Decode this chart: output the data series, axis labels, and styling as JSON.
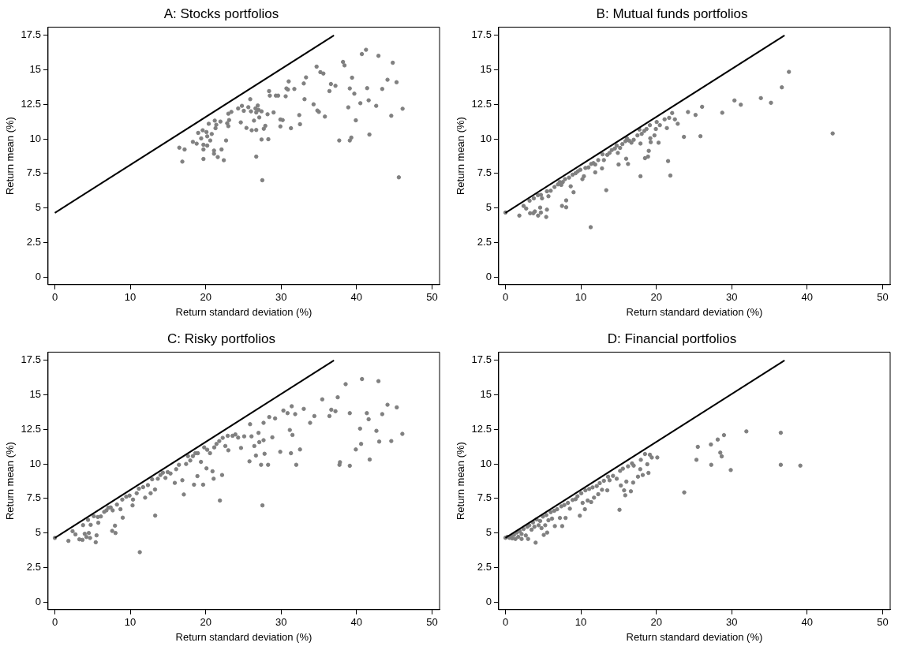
{
  "chart_data": [
    {
      "type": "scatter",
      "title": "A: Stocks portfolios",
      "xlabel": "Return standard deviation (%)",
      "ylabel": "Return mean (%)",
      "xlim": [
        -0.9,
        51
      ],
      "ylim": [
        -0.55,
        18.1
      ],
      "xticks": [
        0,
        10,
        20,
        30,
        40,
        50
      ],
      "yticks": [
        0,
        2.5,
        5,
        7.5,
        10,
        12.5,
        15,
        17.5
      ],
      "grid": false,
      "legend": false,
      "marker": "circle",
      "series": [
        {
          "type": "line",
          "color": "#000000",
          "marker": "none",
          "x": [
            0,
            37
          ],
          "values": [
            4.65,
            17.5
          ]
        },
        {
          "type": "scatter",
          "color": "#808080",
          "x": [
            16.5,
            16.9,
            17.2,
            18.3,
            18.8,
            19.0,
            19.4,
            19.6,
            19.7,
            19.7,
            19.7,
            20.1,
            20.2,
            20.2,
            20.4,
            20.6,
            20.8,
            21.1,
            21.1,
            21.2,
            21.3,
            21.4,
            21.6,
            21.95,
            22.1,
            22.4,
            22.7,
            22.85,
            23.0,
            23.0,
            23.1,
            23.4,
            24.3,
            24.65,
            24.8,
            25.05,
            25.4,
            25.65,
            25.9,
            26.0,
            26.1,
            26.4,
            26.6,
            26.7,
            26.7,
            26.7,
            26.9,
            27.0,
            27.1,
            27.4,
            27.4,
            27.5,
            27.7,
            27.9,
            28.2,
            28.3,
            28.4,
            28.5,
            29.0,
            29.3,
            29.6,
            29.9,
            29.9,
            30.2,
            30.6,
            30.7,
            30.9,
            31.0,
            31.3,
            31.75,
            32.4,
            32.5,
            33.0,
            33.1,
            33.3,
            34.3,
            34.7,
            34.8,
            35.0,
            35.2,
            35.6,
            35.8,
            36.4,
            36.6,
            37.2,
            37.7,
            38.2,
            38.4,
            38.9,
            39.1,
            39.1,
            39.3,
            39.4,
            39.7,
            39.9,
            40.5,
            40.7,
            41.25,
            41.4,
            41.6,
            41.7,
            42.6,
            42.9,
            43.4,
            44.1,
            44.6,
            44.8,
            45.3,
            45.6,
            46.1
          ],
          "values": [
            9.37,
            8.36,
            9.24,
            9.79,
            9.66,
            10.44,
            10.04,
            10.63,
            9.58,
            9.24,
            8.55,
            10.5,
            9.52,
            10.19,
            11.1,
            9.89,
            10.36,
            9.16,
            8.93,
            11.33,
            10.78,
            11.03,
            8.69,
            11.26,
            9.24,
            8.46,
            9.89,
            11.14,
            11.83,
            10.93,
            11.37,
            11.96,
            12.21,
            11.2,
            12.4,
            12.04,
            10.8,
            12.3,
            12.88,
            12.0,
            10.63,
            11.33,
            12.21,
            11.92,
            10.65,
            8.72,
            12.42,
            12.11,
            11.56,
            12.0,
            9.96,
            7.01,
            10.74,
            10.95,
            11.79,
            9.98,
            13.47,
            13.14,
            11.92,
            13.14,
            13.14,
            11.41,
            10.91,
            11.37,
            13.09,
            13.66,
            13.58,
            14.17,
            10.78,
            13.62,
            11.73,
            11.07,
            14.02,
            12.88,
            14.46,
            12.51,
            15.24,
            12.06,
            11.96,
            14.84,
            14.74,
            11.62,
            13.47,
            13.98,
            13.85,
            9.89,
            15.58,
            15.33,
            12.29,
            13.66,
            9.89,
            10.1,
            14.44,
            13.28,
            11.35,
            12.59,
            16.15,
            16.46,
            13.68,
            12.8,
            10.32,
            12.4,
            16.02,
            13.62,
            14.29,
            11.68,
            15.52,
            14.11,
            7.22,
            12.19
          ]
        }
      ]
    },
    {
      "type": "scatter",
      "title": "B: Mutual funds portfolios",
      "xlabel": "Return standard deviation (%)",
      "ylabel": "Return mean (%)",
      "xlim": [
        -0.9,
        51
      ],
      "ylim": [
        -0.55,
        18.1
      ],
      "xticks": [
        0,
        10,
        20,
        30,
        40,
        50
      ],
      "yticks": [
        0,
        2.5,
        5,
        7.5,
        10,
        12.5,
        15,
        17.5
      ],
      "grid": false,
      "legend": false,
      "marker": "circle",
      "series": [
        {
          "type": "line",
          "color": "#000000",
          "marker": "none",
          "x": [
            0,
            37
          ],
          "values": [
            4.65,
            17.5
          ]
        },
        {
          "type": "scatter",
          "color": "#808080",
          "x": [
            0,
            1.84,
            2.4,
            2.75,
            3.2,
            3.27,
            3.7,
            3.76,
            3.9,
            4.3,
            4.33,
            4.6,
            4.7,
            4.7,
            4.85,
            5.4,
            5.5,
            5.5,
            5.7,
            6.0,
            6.5,
            6.96,
            7.2,
            7.4,
            7.5,
            7.6,
            7.9,
            8.05,
            8.05,
            8.43,
            8.65,
            8.9,
            9.03,
            9.3,
            9.6,
            9.93,
            10.2,
            10.4,
            10.6,
            11.0,
            11.3,
            11.36,
            11.66,
            11.9,
            11.9,
            12.3,
            12.8,
            12.87,
            13.05,
            13.36,
            13.5,
            13.8,
            14.1,
            14.5,
            14.75,
            14.9,
            15.0,
            15.2,
            15.5,
            15.9,
            16.0,
            16.1,
            16.25,
            16.4,
            16.7,
            17.0,
            17.5,
            17.76,
            17.9,
            17.9,
            18.06,
            18.4,
            18.5,
            18.7,
            18.9,
            19.0,
            19.15,
            19.2,
            19.26,
            19.75,
            19.94,
            20.05,
            20.3,
            20.47,
            21.1,
            21.4,
            21.56,
            21.7,
            21.86,
            22.1,
            22.46,
            22.84,
            23.66,
            24.2,
            25.2,
            25.85,
            26.07,
            28.74,
            30.36,
            31.2,
            33.86,
            35.2,
            36.64,
            37.58,
            43.38
          ],
          "values": [
            4.67,
            4.45,
            5.15,
            4.96,
            5.53,
            4.62,
            4.62,
            5.7,
            4.75,
            5.93,
            4.45,
            5.03,
            5.95,
            4.67,
            5.7,
            4.35,
            4.88,
            6.21,
            5.85,
            6.25,
            6.52,
            6.71,
            6.88,
            6.67,
            5.15,
            6.88,
            7.09,
            5.55,
            5.05,
            7.2,
            6.57,
            7.41,
            6.14,
            7.52,
            7.66,
            7.77,
            7.09,
            7.3,
            7.9,
            7.94,
            3.61,
            8.19,
            8.25,
            8.15,
            7.58,
            8.47,
            7.87,
            8.89,
            8.47,
            6.29,
            8.85,
            8.99,
            9.2,
            9.31,
            9.52,
            8.99,
            8.15,
            9.35,
            9.63,
            9.84,
            8.57,
            10.05,
            8.19,
            9.88,
            9.73,
            9.94,
            10.26,
            10.68,
            9.67,
            7.3,
            10.37,
            10.58,
            8.61,
            10.72,
            8.72,
            9.14,
            11.0,
            10.05,
            9.77,
            10.26,
            10.72,
            11.23,
            9.73,
            11.0,
            11.42,
            10.79,
            8.4,
            11.53,
            7.35,
            11.88,
            11.42,
            11.1,
            10.15,
            11.95,
            11.74,
            10.2,
            12.33,
            11.9,
            12.79,
            12.48,
            12.96,
            12.62,
            13.74,
            14.86,
            10.4
          ]
        }
      ]
    },
    {
      "type": "scatter",
      "title": "C: Risky portfolios",
      "xlabel": "Return standard deviation (%)",
      "ylabel": "Return mean (%)",
      "xlim": [
        -0.9,
        51
      ],
      "ylim": [
        -0.55,
        18.1
      ],
      "xticks": [
        0,
        10,
        20,
        30,
        40,
        50
      ],
      "yticks": [
        0,
        2.5,
        5,
        7.5,
        10,
        12.5,
        15,
        17.5
      ],
      "grid": false,
      "legend": false,
      "marker": "circle",
      "series": [
        {
          "type": "line",
          "color": "#000000",
          "marker": "none",
          "x": [
            0,
            37
          ],
          "values": [
            4.65,
            17.5
          ]
        },
        {
          "type": "scatter",
          "color": "#808080",
          "x": [
            0,
            1.8,
            2.35,
            2.73,
            3.25,
            3.66,
            3.74,
            3.96,
            4.19,
            4.4,
            4.5,
            4.67,
            4.75,
            5.16,
            5.42,
            5.53,
            5.7,
            5.76,
            6.1,
            6.54,
            6.84,
            7.1,
            7.4,
            7.6,
            7.67,
            7.97,
            8.04,
            8.23,
            8.7,
            8.94,
            9.0,
            9.46,
            9.9,
            10.3,
            10.36,
            10.85,
            11.14,
            11.26,
            11.7,
            11.97,
            12.34,
            12.7,
            12.9,
            13.28,
            13.3,
            13.65,
            14.0,
            14.32,
            14.66,
            14.96,
            15.33,
            15.9,
            16.08,
            16.45,
            16.9,
            17.1,
            17.4,
            17.65,
            17.95,
            18.3,
            18.45,
            18.63,
            18.9,
            18.96,
            19.37,
            19.66,
            19.8,
            20.1,
            20.2,
            20.57,
            20.9,
            21.05,
            21.13,
            21.43,
            21.8,
            21.88,
            22.17,
            22.25,
            22.6,
            22.92,
            23.0,
            23.56,
            23.93,
            24.3,
            24.68,
            25.1,
            25.8,
            25.88,
            26.07,
            26.44,
            26.66,
            27.0,
            27.1,
            27.34,
            27.52,
            27.67,
            27.8,
            27.67,
            28.42,
            28.27,
            28.83,
            29.2,
            29.88,
            30.3,
            30.85,
            31.15,
            31.4,
            31.3,
            31.5,
            31.86,
            32.0,
            32.5,
            33.0,
            33.84,
            34.4,
            35.45,
            36.4,
            36.65,
            37.2,
            37.5,
            37.73,
            37.8,
            38.55,
            39.1,
            39.1,
            39.9,
            40.46,
            40.6,
            40.72,
            41.36,
            41.6,
            41.74,
            42.63,
            42.9,
            43.0,
            43.4,
            44.1,
            44.6,
            45.33,
            46.07
          ],
          "values": [
            4.64,
            4.43,
            5.13,
            4.9,
            4.54,
            4.5,
            5.57,
            4.94,
            4.71,
            5.95,
            5.0,
            4.64,
            5.59,
            6.22,
            4.33,
            4.83,
            6.16,
            5.74,
            6.2,
            6.53,
            6.64,
            6.83,
            6.85,
            5.15,
            6.64,
            5.53,
            5.0,
            7.06,
            6.72,
            7.42,
            6.11,
            7.63,
            7.71,
            7.0,
            7.42,
            7.88,
            8.21,
            3.61,
            8.32,
            7.56,
            8.47,
            7.88,
            8.89,
            8.15,
            6.26,
            8.93,
            9.2,
            9.37,
            8.99,
            9.41,
            9.31,
            8.63,
            9.62,
            9.94,
            8.82,
            7.79,
            10.0,
            10.57,
            10.25,
            10.57,
            8.5,
            10.78,
            9.12,
            10.78,
            10.15,
            8.5,
            11.2,
            9.68,
            11.03,
            10.78,
            9.47,
            8.93,
            11.2,
            11.45,
            11.66,
            7.35,
            9.2,
            11.89,
            11.3,
            12.04,
            10.99,
            12.04,
            12.14,
            11.91,
            11.16,
            12.0,
            10.19,
            12.88,
            12.0,
            11.3,
            10.61,
            12.25,
            11.58,
            9.94,
            7.0,
            11.72,
            10.74,
            12.98,
            13.4,
            9.94,
            11.93,
            13.3,
            10.88,
            13.87,
            13.68,
            12.46,
            14.18,
            10.78,
            12.1,
            13.61,
            9.94,
            11.05,
            13.99,
            12.98,
            13.47,
            14.68,
            13.47,
            13.93,
            13.82,
            14.83,
            9.94,
            10.13,
            15.78,
            13.68,
            9.87,
            11.05,
            12.56,
            11.45,
            16.15,
            13.68,
            13.24,
            10.32,
            12.4,
            16.0,
            11.62,
            13.61,
            14.29,
            11.66,
            14.1,
            12.18
          ]
        }
      ]
    },
    {
      "type": "scatter",
      "title": "D: Financial portfolios",
      "xlabel": "Return standard deviation (%)",
      "ylabel": "Return mean (%)",
      "xlim": [
        -0.9,
        51
      ],
      "ylim": [
        -0.55,
        18.1
      ],
      "xticks": [
        0,
        10,
        20,
        30,
        40,
        50
      ],
      "yticks": [
        0,
        2.5,
        5,
        7.5,
        10,
        12.5,
        15,
        17.5
      ],
      "grid": false,
      "legend": false,
      "marker": "circle",
      "series": [
        {
          "type": "line",
          "color": "#000000",
          "marker": "none",
          "x": [
            0,
            37
          ],
          "values": [
            4.65,
            17.5
          ]
        },
        {
          "type": "scatter",
          "color": "#808080",
          "x": [
            0,
            0.26,
            0.53,
            0.75,
            0.9,
            1.13,
            1.32,
            1.5,
            1.7,
            1.88,
            2.14,
            2.14,
            2.4,
            2.7,
            2.9,
            3.0,
            3.16,
            3.46,
            3.65,
            3.84,
            4.0,
            4.14,
            4.4,
            4.6,
            4.78,
            4.97,
            5.08,
            5.27,
            5.42,
            5.53,
            5.7,
            6.0,
            6.17,
            6.47,
            6.55,
            6.85,
            7.22,
            7.4,
            7.52,
            7.8,
            7.97,
            8.28,
            8.54,
            8.9,
            9.3,
            9.55,
            9.86,
            10.05,
            10.23,
            10.53,
            10.6,
            10.9,
            11.1,
            11.36,
            11.55,
            11.74,
            12.1,
            12.3,
            12.5,
            12.8,
            13.05,
            13.5,
            13.6,
            13.8,
            14.26,
            14.75,
            15.12,
            15.2,
            15.3,
            15.57,
            15.73,
            15.88,
            16.03,
            16.25,
            16.63,
            16.78,
            16.93,
            17.0,
            17.57,
            17.87,
            17.95,
            18.2,
            18.5,
            18.8,
            18.96,
            19.15,
            19.4,
            20.13,
            23.7,
            25.32,
            25.5,
            27.24,
            27.28,
            28.14,
            28.48,
            28.67,
            28.97,
            29.87,
            31.94,
            36.5,
            36.5,
            39.09
          ],
          "values": [
            4.65,
            4.72,
            4.65,
            4.78,
            4.61,
            4.86,
            4.57,
            5.03,
            4.72,
            5.14,
            4.57,
            4.93,
            5.29,
            4.82,
            5.45,
            4.57,
            5.56,
            5.24,
            5.77,
            5.45,
            4.3,
            5.98,
            5.56,
            5.87,
            5.35,
            6.19,
            4.86,
            5.56,
            6.3,
            5.03,
            5.92,
            6.51,
            6.04,
            6.61,
            5.5,
            6.72,
            6.09,
            6.93,
            5.5,
            7.03,
            6.09,
            7.18,
            6.76,
            7.39,
            7.45,
            7.66,
            6.25,
            7.88,
            7.18,
            6.72,
            8.09,
            7.35,
            8.19,
            7.24,
            8.3,
            7.56,
            8.4,
            7.81,
            8.61,
            8.13,
            8.78,
            8.09,
            9.08,
            8.82,
            9.14,
            8.93,
            6.68,
            9.5,
            8.44,
            9.66,
            8.09,
            7.73,
            8.72,
            9.83,
            8.02,
            10.04,
            8.65,
            9.88,
            9.08,
            9.62,
            10.3,
            9.2,
            10.72,
            9.98,
            9.35,
            10.67,
            10.47,
            10.47,
            7.94,
            10.3,
            11.24,
            11.41,
            9.94,
            11.77,
            10.82,
            10.55,
            12.09,
            9.56,
            12.36,
            12.26,
            9.94,
            9.88
          ]
        }
      ]
    }
  ]
}
